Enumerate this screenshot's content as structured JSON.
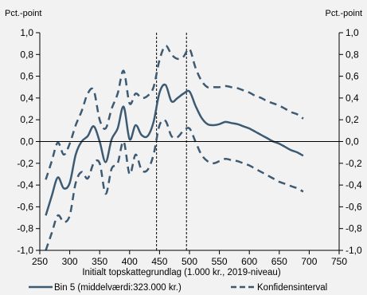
{
  "chart_data": {
    "type": "line",
    "ylabel_left": "Pct.-point",
    "ylabel_right": "Pct.-point",
    "xlabel": "Initialt topskattegrundlag (1.000 kr., 2019-niveau)",
    "xlim": [
      250,
      750
    ],
    "ylim": [
      -1.0,
      1.0
    ],
    "x_ticks": [
      250,
      300,
      350,
      400,
      450,
      500,
      550,
      600,
      650,
      700,
      750
    ],
    "y_ticks": [
      -1.0,
      -0.8,
      -0.6,
      -0.4,
      -0.2,
      0.0,
      0.2,
      0.4,
      0.6,
      0.8,
      1.0
    ],
    "y_tick_labels": [
      "-1,0",
      "-0,8",
      "-0,6",
      "-0,4",
      "-0,2",
      "0,0",
      "0,2",
      "0,4",
      "0,6",
      "0,8",
      "1,0"
    ],
    "reference_lines_x": [
      445,
      495
    ],
    "zero_line": true,
    "grid": false,
    "legend_position": "bottom",
    "color_line": "#3d5a73",
    "series": [
      {
        "name": "Bin 5 (middelværdi:323.000 kr.)",
        "style": "solid",
        "x": [
          260,
          270,
          280,
          290,
          300,
          310,
          320,
          330,
          340,
          350,
          360,
          370,
          380,
          390,
          400,
          410,
          420,
          430,
          440,
          450,
          460,
          470,
          480,
          490,
          500,
          510,
          520,
          530,
          540,
          550,
          560,
          570,
          580,
          590,
          600,
          610,
          620,
          630,
          640,
          650,
          660,
          670,
          680,
          690
        ],
        "y": [
          -0.68,
          -0.5,
          -0.33,
          -0.43,
          -0.38,
          -0.12,
          0.0,
          0.05,
          0.14,
          0.0,
          -0.19,
          0.02,
          0.12,
          0.32,
          0.02,
          0.15,
          0.06,
          0.05,
          0.18,
          0.45,
          0.52,
          0.37,
          0.4,
          0.44,
          0.46,
          0.33,
          0.22,
          0.16,
          0.15,
          0.16,
          0.18,
          0.17,
          0.16,
          0.14,
          0.12,
          0.09,
          0.06,
          0.03,
          0.0,
          -0.02,
          -0.05,
          -0.08,
          -0.1,
          -0.13
        ]
      },
      {
        "name": "Konfidensinterval",
        "style": "dashed",
        "x": [
          260,
          270,
          280,
          290,
          300,
          310,
          320,
          330,
          340,
          350,
          360,
          370,
          380,
          390,
          400,
          410,
          420,
          430,
          440,
          450,
          460,
          470,
          480,
          490,
          500,
          510,
          520,
          530,
          540,
          550,
          560,
          570,
          580,
          590,
          600,
          610,
          620,
          630,
          640,
          650,
          660,
          670,
          680,
          690
        ],
        "y": [
          -0.35,
          -0.18,
          -0.01,
          -0.12,
          -0.02,
          0.15,
          0.28,
          0.44,
          0.47,
          0.2,
          0.12,
          0.3,
          0.44,
          0.65,
          0.35,
          0.44,
          0.4,
          0.42,
          0.5,
          0.75,
          0.88,
          0.8,
          0.76,
          0.78,
          0.85,
          0.68,
          0.56,
          0.5,
          0.5,
          0.5,
          0.51,
          0.5,
          0.49,
          0.47,
          0.45,
          0.42,
          0.4,
          0.37,
          0.35,
          0.33,
          0.3,
          0.27,
          0.25,
          0.21
        ]
      },
      {
        "name": "Konfidensinterval",
        "style": "dashed",
        "legend": false,
        "x": [
          260,
          270,
          280,
          290,
          300,
          310,
          320,
          330,
          340,
          350,
          360,
          370,
          380,
          390,
          400,
          410,
          420,
          430,
          440,
          450,
          460,
          470,
          480,
          490,
          500,
          510,
          520,
          530,
          540,
          550,
          560,
          570,
          580,
          590,
          600,
          610,
          620,
          630,
          640,
          650,
          660,
          670,
          680,
          690
        ],
        "y": [
          -1.0,
          -0.84,
          -0.68,
          -0.74,
          -0.68,
          -0.38,
          -0.28,
          -0.34,
          -0.2,
          -0.2,
          -0.48,
          -0.25,
          -0.2,
          0.0,
          -0.3,
          -0.12,
          -0.26,
          -0.26,
          -0.12,
          0.15,
          0.19,
          0.05,
          0.04,
          0.1,
          0.12,
          0.0,
          -0.12,
          -0.18,
          -0.2,
          -0.18,
          -0.16,
          -0.17,
          -0.18,
          -0.2,
          -0.22,
          -0.25,
          -0.28,
          -0.31,
          -0.34,
          -0.37,
          -0.39,
          -0.41,
          -0.43,
          -0.46
        ]
      }
    ]
  }
}
